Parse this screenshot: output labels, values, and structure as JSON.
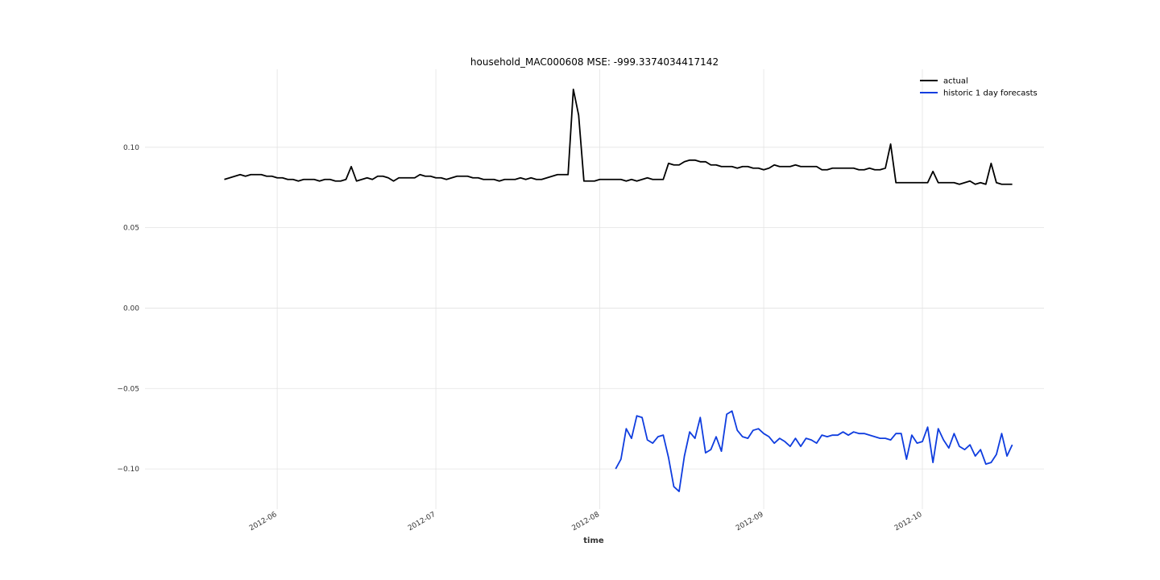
{
  "chart_data": {
    "type": "line",
    "title": "household_MAC000608 MSE: -999.3374034417142",
    "xlabel": "time",
    "ylabel": "",
    "x_range": [
      "2012-05-07",
      "2012-10-24"
    ],
    "ylim": [
      -0.125,
      0.1485
    ],
    "grid": true,
    "legend_position": "top-right",
    "y_ticks": [
      {
        "value": 0.1,
        "label": "0.10"
      },
      {
        "value": 0.05,
        "label": "0.05"
      },
      {
        "value": 0.0,
        "label": "0.00"
      },
      {
        "value": -0.05,
        "label": "−0.05"
      },
      {
        "value": -0.1,
        "label": "−0.10"
      }
    ],
    "x_ticks": [
      {
        "value": "2012-06-01",
        "label": "2012-06"
      },
      {
        "value": "2012-07-01",
        "label": "2012-07"
      },
      {
        "value": "2012-08-01",
        "label": "2012-08"
      },
      {
        "value": "2012-09-01",
        "label": "2012-09"
      },
      {
        "value": "2012-10-01",
        "label": "2012-10"
      }
    ],
    "series": [
      {
        "name": "actual",
        "color": "#000000",
        "start": "2012-05-22",
        "values": [
          0.08,
          0.081,
          0.082,
          0.083,
          0.082,
          0.083,
          0.083,
          0.083,
          0.082,
          0.082,
          0.081,
          0.081,
          0.08,
          0.08,
          0.079,
          0.08,
          0.08,
          0.08,
          0.079,
          0.08,
          0.08,
          0.079,
          0.079,
          0.08,
          0.088,
          0.079,
          0.08,
          0.081,
          0.08,
          0.082,
          0.082,
          0.081,
          0.079,
          0.081,
          0.081,
          0.081,
          0.081,
          0.083,
          0.082,
          0.082,
          0.081,
          0.081,
          0.08,
          0.081,
          0.082,
          0.082,
          0.082,
          0.081,
          0.081,
          0.08,
          0.08,
          0.08,
          0.079,
          0.08,
          0.08,
          0.08,
          0.081,
          0.08,
          0.081,
          0.08,
          0.08,
          0.081,
          0.082,
          0.083,
          0.083,
          0.083,
          0.136,
          0.12,
          0.079,
          0.079,
          0.079,
          0.08,
          0.08,
          0.08,
          0.08,
          0.08,
          0.079,
          0.08,
          0.079,
          0.08,
          0.081,
          0.08,
          0.08,
          0.08,
          0.09,
          0.089,
          0.089,
          0.091,
          0.092,
          0.092,
          0.091,
          0.091,
          0.089,
          0.089,
          0.088,
          0.088,
          0.088,
          0.087,
          0.088,
          0.088,
          0.087,
          0.087,
          0.086,
          0.087,
          0.089,
          0.088,
          0.088,
          0.088,
          0.089,
          0.088,
          0.088,
          0.088,
          0.088,
          0.086,
          0.086,
          0.087,
          0.087,
          0.087,
          0.087,
          0.087,
          0.086,
          0.086,
          0.087,
          0.086,
          0.086,
          0.087,
          0.102,
          0.078,
          0.078,
          0.078,
          0.078,
          0.078,
          0.078,
          0.078,
          0.085,
          0.078,
          0.078,
          0.078,
          0.078,
          0.077,
          0.078,
          0.079,
          0.077,
          0.078,
          0.077,
          0.09,
          0.078,
          0.077,
          0.077,
          0.077
        ]
      },
      {
        "name": "historic 1 day forecasts",
        "color": "#0f3ddf",
        "start": "2012-08-04",
        "values": [
          -0.1,
          -0.094,
          -0.075,
          -0.081,
          -0.067,
          -0.068,
          -0.082,
          -0.084,
          -0.08,
          -0.079,
          -0.093,
          -0.111,
          -0.114,
          -0.092,
          -0.077,
          -0.081,
          -0.068,
          -0.09,
          -0.088,
          -0.08,
          -0.089,
          -0.066,
          -0.064,
          -0.076,
          -0.08,
          -0.081,
          -0.076,
          -0.075,
          -0.078,
          -0.08,
          -0.084,
          -0.081,
          -0.083,
          -0.086,
          -0.081,
          -0.086,
          -0.081,
          -0.082,
          -0.084,
          -0.079,
          -0.08,
          -0.079,
          -0.079,
          -0.077,
          -0.079,
          -0.077,
          -0.078,
          -0.078,
          -0.079,
          -0.08,
          -0.081,
          -0.081,
          -0.082,
          -0.078,
          -0.078,
          -0.094,
          -0.079,
          -0.084,
          -0.083,
          -0.074,
          -0.096,
          -0.075,
          -0.082,
          -0.087,
          -0.078,
          -0.086,
          -0.088,
          -0.085,
          -0.092,
          -0.088,
          -0.097,
          -0.096,
          -0.091,
          -0.078,
          -0.092,
          -0.085
        ]
      }
    ]
  }
}
